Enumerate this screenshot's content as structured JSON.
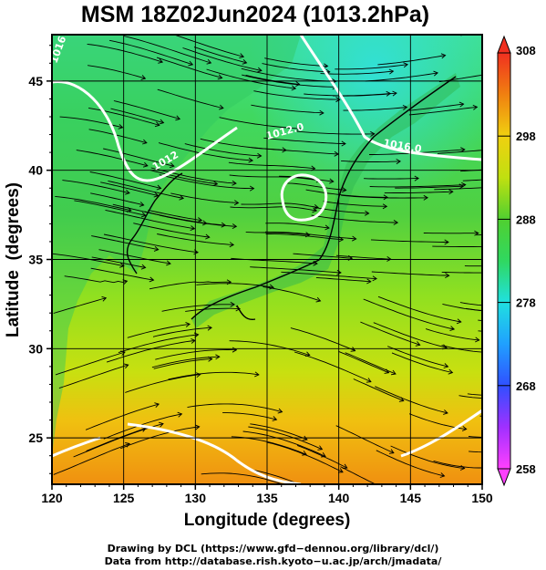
{
  "title": "MSM 18Z02Jun2024 (1013.2hPa)",
  "axes": {
    "xlabel": "Longitude (degrees)",
    "ylabel": "Latitude  (degrees)",
    "xticks": [
      "120",
      "125",
      "130",
      "135",
      "140",
      "145",
      "150"
    ],
    "yticks": [
      "25",
      "30",
      "35",
      "40",
      "45"
    ]
  },
  "colorbar": {
    "ticks": [
      "258",
      "268",
      "278",
      "288",
      "298",
      "308"
    ],
    "colors": [
      "#ff40ff",
      "#9030ff",
      "#3050ff",
      "#20a0ff",
      "#20e0e0",
      "#30e0a0",
      "#30d050",
      "#80e020",
      "#e0f010",
      "#f0c010",
      "#f08010",
      "#f03020"
    ]
  },
  "isobar_labels": [
    "1012",
    "1012.0",
    "1016.0",
    "1016"
  ],
  "credits": {
    "line1": "Drawing by DCL (https://www.gfd−dennou.org/library/dcl/)",
    "line2": "Data from http://database.rish.kyoto−u.ac.jp/arch/jmadata/"
  },
  "chart_data": {
    "type": "heatmap",
    "title": "MSM 18Z02Jun2024 (1013.2hPa)",
    "xlabel": "Longitude (degrees)",
    "ylabel": "Latitude  (degrees)",
    "xlim": [
      120,
      150
    ],
    "ylim": [
      22.4,
      47.6
    ],
    "colorbar_range": [
      258,
      308
    ],
    "colorbar_ticks": [
      258,
      268,
      278,
      288,
      298,
      308
    ]
  }
}
